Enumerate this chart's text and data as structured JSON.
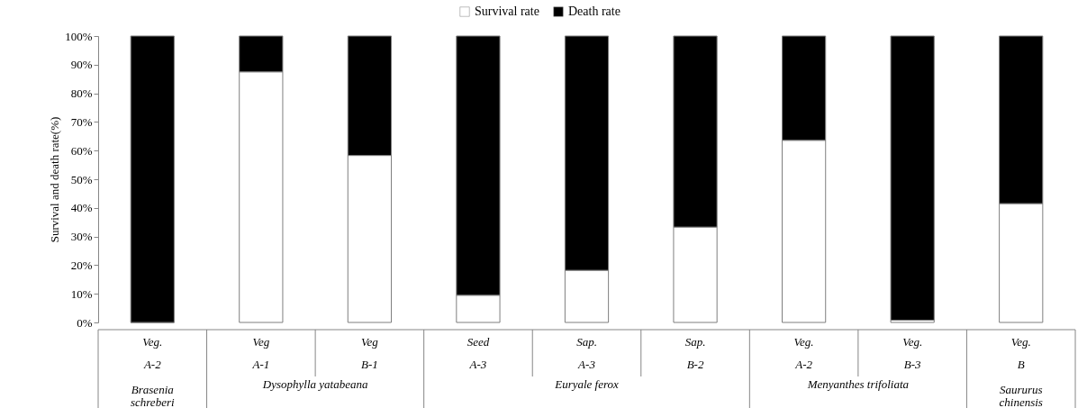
{
  "chart_data": {
    "type": "bar",
    "stacked": true,
    "ylabel": "Survival and death rate(%)",
    "categories": [
      "Veg.\nA-2",
      "Veg\nA-1",
      "Veg\nB-1",
      "Seed\nA-3",
      "Sap.\nA-3",
      "Sap.\nB-2",
      "Veg.\nA-2",
      "Veg.\nB-3",
      "Veg.\nB"
    ],
    "series": [
      {
        "name": "Survival rate",
        "color": "#ffffff",
        "values": [
          0,
          87.5,
          58.3,
          9.5,
          18.2,
          33.3,
          63.6,
          0.8,
          41.5
        ]
      },
      {
        "name": "Death rate",
        "color": "#000000",
        "values": [
          100,
          12.5,
          41.7,
          90.5,
          81.8,
          66.7,
          36.4,
          99.2,
          58.5
        ]
      }
    ],
    "ylim": [
      0,
      100
    ],
    "yticks": [
      {
        "value": 0,
        "label": "0%"
      },
      {
        "value": 10,
        "label": "10%"
      },
      {
        "value": 20,
        "label": "20%"
      },
      {
        "value": 30,
        "label": "30%"
      },
      {
        "value": 40,
        "label": "40%"
      },
      {
        "value": 50,
        "label": "50%"
      },
      {
        "value": 60,
        "label": "60%"
      },
      {
        "value": 70,
        "label": "70%"
      },
      {
        "value": 80,
        "label": "80%"
      },
      {
        "value": 90,
        "label": "90%"
      },
      {
        "value": 100,
        "label": "100%"
      }
    ],
    "legend": "top",
    "grid": false,
    "annotations": [
      "Brasenia schreberi",
      "Dysophylla yatabeana",
      "Euryale ferox",
      "Menyanthes trifoliata",
      "Saururus chinensis"
    ]
  }
}
